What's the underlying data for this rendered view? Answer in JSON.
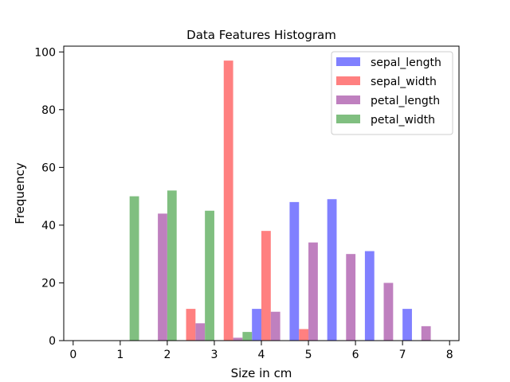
{
  "chart_data": {
    "type": "bar",
    "title": "Data Features Histogram",
    "xlabel": "Size in cm",
    "ylabel": "Frequency",
    "xlim": [
      -0.2,
      8.2
    ],
    "ylim": [
      0,
      102
    ],
    "xticks": [
      0,
      1,
      2,
      3,
      4,
      5,
      6,
      7,
      8
    ],
    "yticks": [
      0,
      20,
      40,
      60,
      80,
      100
    ],
    "bin_edges": [
      0.6,
      1.4,
      2.2,
      3.0,
      3.8,
      4.6,
      5.4,
      6.2,
      7.0,
      7.8
    ],
    "grid": false,
    "legend_position": "top-right",
    "series": [
      {
        "name": "sepal_length",
        "color": "#8080ff",
        "values": [
          0,
          0,
          0,
          0,
          11,
          48,
          49,
          31,
          11
        ]
      },
      {
        "name": "sepal_width",
        "color": "#ff8080",
        "values": [
          0,
          0,
          11,
          97,
          38,
          4,
          0,
          0,
          0
        ]
      },
      {
        "name": "petal_length",
        "color": "#bf80bf",
        "values": [
          0,
          44,
          6,
          1,
          10,
          34,
          30,
          20,
          5
        ]
      },
      {
        "name": "petal_width",
        "color": "#80bf80",
        "values": [
          50,
          52,
          45,
          3,
          0,
          0,
          0,
          0,
          0
        ]
      }
    ]
  }
}
